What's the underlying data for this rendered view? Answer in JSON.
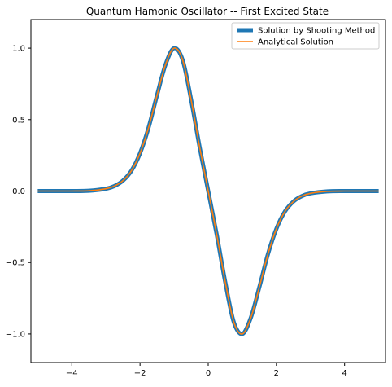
{
  "chart_data": {
    "type": "line",
    "title": "Quantum Hamonic Oscillator -- First Excited State",
    "xlabel": "",
    "ylabel": "",
    "xlim": [
      -5.2,
      5.2
    ],
    "ylim": [
      -1.2,
      1.2
    ],
    "x_ticks": [
      -4,
      -2,
      0,
      2,
      4
    ],
    "x_tick_labels": [
      "−4",
      "−2",
      "0",
      "2",
      "4"
    ],
    "y_ticks": [
      1.0,
      0.5,
      0.0,
      -0.5,
      -1.0
    ],
    "y_tick_labels": [
      "1.0",
      "0.5",
      "0.0",
      "−0.5",
      "−1.0"
    ],
    "grid": false,
    "legend_position": "top-right",
    "series": [
      {
        "name": "Solution by Shooting Method",
        "color": "#1f77b4",
        "line_style": "thick",
        "x": [
          -5.0,
          -4.5,
          -4.0,
          -3.5,
          -3.0,
          -2.75,
          -2.5,
          -2.25,
          -2.0,
          -1.75,
          -1.5,
          -1.25,
          -1.0,
          -0.75,
          -0.5,
          -0.25,
          0.0,
          0.25,
          0.5,
          0.75,
          1.0,
          1.25,
          1.5,
          1.75,
          2.0,
          2.25,
          2.5,
          2.75,
          3.0,
          3.5,
          4.0,
          4.5,
          5.0
        ],
        "y": [
          0.0,
          0.0,
          0.0,
          0.002,
          0.016,
          0.035,
          0.073,
          0.143,
          0.264,
          0.443,
          0.672,
          0.886,
          1.0,
          0.917,
          0.637,
          0.305,
          0.0,
          -0.305,
          -0.637,
          -0.917,
          -1.0,
          -0.886,
          -0.672,
          -0.443,
          -0.264,
          -0.143,
          -0.073,
          -0.035,
          -0.016,
          -0.002,
          0.0,
          0.0,
          0.0
        ]
      },
      {
        "name": "Analytical Solution",
        "color": "#ff7f0e",
        "line_style": "thin",
        "x": [
          -5.0,
          -4.5,
          -4.0,
          -3.5,
          -3.0,
          -2.75,
          -2.5,
          -2.25,
          -2.0,
          -1.75,
          -1.5,
          -1.25,
          -1.0,
          -0.75,
          -0.5,
          -0.25,
          0.0,
          0.25,
          0.5,
          0.75,
          1.0,
          1.25,
          1.5,
          1.75,
          2.0,
          2.25,
          2.5,
          2.75,
          3.0,
          3.5,
          4.0,
          4.5,
          5.0
        ],
        "y": [
          0.0,
          0.0,
          0.0,
          0.002,
          0.016,
          0.035,
          0.073,
          0.143,
          0.264,
          0.443,
          0.672,
          0.886,
          1.0,
          0.917,
          0.637,
          0.305,
          0.0,
          -0.305,
          -0.637,
          -0.917,
          -1.0,
          -0.886,
          -0.672,
          -0.443,
          -0.264,
          -0.143,
          -0.073,
          -0.035,
          -0.016,
          -0.002,
          0.0,
          0.0,
          0.0
        ]
      }
    ]
  }
}
